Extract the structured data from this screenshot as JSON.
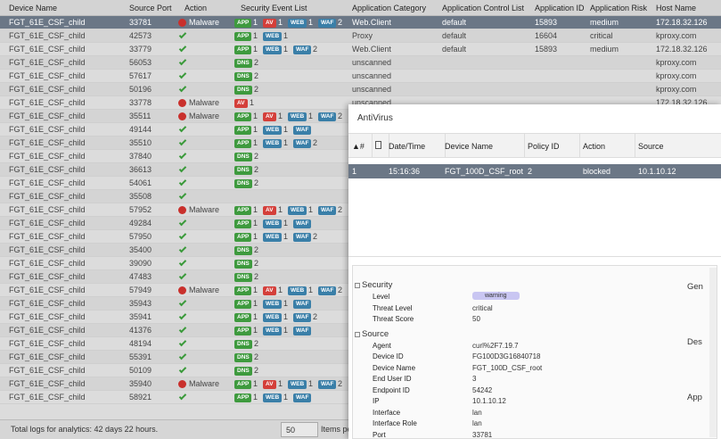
{
  "log_table": {
    "columns": [
      "Device Name",
      "Source Port",
      "Action",
      "Security Event List",
      "Application Category",
      "Application Control List",
      "Application ID",
      "Application Risk",
      "Host Name"
    ],
    "rows": [
      {
        "device": "FGT_61E_CSF_child",
        "port": 33781,
        "action": "Malware",
        "events": [
          [
            "APP",
            1
          ],
          [
            "AV",
            1
          ],
          [
            "WEB",
            1
          ],
          [
            "WAF",
            2
          ]
        ],
        "category": "Web.Client",
        "control": "default",
        "app_id": 15893,
        "risk": "medium",
        "host": "172.18.32.126"
      },
      {
        "device": "FGT_61E_CSF_child",
        "port": 42573,
        "events": [
          [
            "APP",
            1
          ],
          [
            "WEB",
            1
          ]
        ],
        "category": "Proxy",
        "control": "default",
        "app_id": 16604,
        "risk": "critical",
        "host": "kproxy.com"
      },
      {
        "device": "FGT_61E_CSF_child",
        "port": 33779,
        "events": [
          [
            "APP",
            1
          ],
          [
            "WEB",
            1
          ],
          [
            "WAF",
            2
          ]
        ],
        "category": "Web.Client",
        "control": "default",
        "app_id": 15893,
        "risk": "medium",
        "host": "172.18.32.126"
      },
      {
        "device": "FGT_61E_CSF_child",
        "port": 56053,
        "events": [
          [
            "DNS",
            2
          ]
        ],
        "category": "unscanned",
        "host": "kproxy.com"
      },
      {
        "device": "FGT_61E_CSF_child",
        "port": 57617,
        "events": [
          [
            "DNS",
            2
          ]
        ],
        "category": "unscanned",
        "host": "kproxy.com"
      },
      {
        "device": "FGT_61E_CSF_child",
        "port": 50196,
        "events": [
          [
            "DNS",
            2
          ]
        ],
        "category": "unscanned",
        "host": "kproxy.com"
      },
      {
        "device": "FGT_61E_CSF_child",
        "port": 33778,
        "action": "Malware",
        "events": [
          [
            "AV",
            1
          ]
        ],
        "category": "unscanned",
        "host": "172.18.32.126"
      },
      {
        "device": "FGT_61E_CSF_child",
        "port": 35511,
        "action": "Malware",
        "events": [
          [
            "APP",
            1
          ],
          [
            "AV",
            1
          ],
          [
            "WEB",
            1
          ],
          [
            "WAF",
            2
          ]
        ]
      },
      {
        "device": "FGT_61E_CSF_child",
        "port": 49144,
        "events": [
          [
            "APP",
            1
          ],
          [
            "WEB",
            1
          ],
          [
            "WAF"
          ]
        ]
      },
      {
        "device": "FGT_61E_CSF_child",
        "port": 35510,
        "events": [
          [
            "APP",
            1
          ],
          [
            "WEB",
            1
          ],
          [
            "WAF",
            2
          ]
        ]
      },
      {
        "device": "FGT_61E_CSF_child",
        "port": 37840,
        "events": [
          [
            "DNS",
            2
          ]
        ]
      },
      {
        "device": "FGT_61E_CSF_child",
        "port": 36613,
        "events": [
          [
            "DNS",
            2
          ]
        ]
      },
      {
        "device": "FGT_61E_CSF_child",
        "port": 54061,
        "events": [
          [
            "DNS",
            2
          ]
        ]
      },
      {
        "device": "FGT_61E_CSF_child",
        "port": 35508,
        "events": []
      },
      {
        "device": "FGT_61E_CSF_child",
        "port": 57952,
        "action": "Malware",
        "events": [
          [
            "APP",
            1
          ],
          [
            "AV",
            1
          ],
          [
            "WEB",
            1
          ],
          [
            "WAF",
            2
          ]
        ]
      },
      {
        "device": "FGT_61E_CSF_child",
        "port": 49284,
        "events": [
          [
            "APP",
            1
          ],
          [
            "WEB",
            1
          ],
          [
            "WAF"
          ]
        ]
      },
      {
        "device": "FGT_61E_CSF_child",
        "port": 57950,
        "events": [
          [
            "APP",
            1
          ],
          [
            "WEB",
            1
          ],
          [
            "WAF",
            2
          ]
        ]
      },
      {
        "device": "FGT_61E_CSF_child",
        "port": 35400,
        "events": [
          [
            "DNS",
            2
          ]
        ]
      },
      {
        "device": "FGT_61E_CSF_child",
        "port": 39090,
        "events": [
          [
            "DNS",
            2
          ]
        ]
      },
      {
        "device": "FGT_61E_CSF_child",
        "port": 47483,
        "events": [
          [
            "DNS",
            2
          ]
        ]
      },
      {
        "device": "FGT_61E_CSF_child",
        "port": 57949,
        "action": "Malware",
        "events": [
          [
            "APP",
            1
          ],
          [
            "AV",
            1
          ],
          [
            "WEB",
            1
          ],
          [
            "WAF",
            2
          ]
        ]
      },
      {
        "device": "FGT_61E_CSF_child",
        "port": 35943,
        "events": [
          [
            "APP",
            1
          ],
          [
            "WEB",
            1
          ],
          [
            "WAF"
          ]
        ]
      },
      {
        "device": "FGT_61E_CSF_child",
        "port": 35941,
        "events": [
          [
            "APP",
            1
          ],
          [
            "WEB",
            1
          ],
          [
            "WAF",
            2
          ]
        ]
      },
      {
        "device": "FGT_61E_CSF_child",
        "port": 41376,
        "events": [
          [
            "APP",
            1
          ],
          [
            "WEB",
            1
          ],
          [
            "WAF"
          ]
        ]
      },
      {
        "device": "FGT_61E_CSF_child",
        "port": 48194,
        "events": [
          [
            "DNS",
            2
          ]
        ]
      },
      {
        "device": "FGT_61E_CSF_child",
        "port": 55391,
        "events": [
          [
            "DNS",
            2
          ]
        ]
      },
      {
        "device": "FGT_61E_CSF_child",
        "port": 50109,
        "events": [
          [
            "DNS",
            2
          ]
        ]
      },
      {
        "device": "FGT_61E_CSF_child",
        "port": 35940,
        "action": "Malware",
        "events": [
          [
            "APP",
            1
          ],
          [
            "AV",
            1
          ],
          [
            "WEB",
            1
          ],
          [
            "WAF",
            2
          ]
        ]
      },
      {
        "device": "FGT_61E_CSF_child",
        "port": 58921,
        "events": [
          [
            "APP",
            1
          ],
          [
            "WEB",
            1
          ],
          [
            "WAF"
          ]
        ]
      }
    ]
  },
  "footer": {
    "summary": "Total logs for analytics: 42 days 22 hours.",
    "page_size": 50,
    "items_label": "Items pe"
  },
  "modal": {
    "title": "AntiVirus",
    "columns": [
      "▲#",
      "Date/Time",
      "Device Name",
      "Policy ID",
      "Action",
      "Source"
    ],
    "rows": [
      [
        1,
        "15:16:36",
        "FGT_100D_CSF_root",
        2,
        "blocked",
        "10.1.10.12"
      ]
    ],
    "details": [
      {
        "section": "Security",
        "fields": [
          [
            "Level",
            "warning"
          ],
          [
            "Threat Level",
            "critical"
          ],
          [
            "Threat Score",
            50
          ]
        ]
      },
      {
        "section": "Source",
        "fields": [
          [
            "Agent",
            "curl%2F7.19.7"
          ],
          [
            "Device ID",
            "FG100D3G16840718"
          ],
          [
            "Device Name",
            "FGT_100D_CSF_root"
          ],
          [
            "End User ID",
            3
          ],
          [
            "Endpoint ID",
            54242
          ],
          [
            "IP",
            "10.1.10.12"
          ],
          [
            "Interface",
            "lan"
          ],
          [
            "Interface Role",
            "lan"
          ],
          [
            "Port",
            33781
          ]
        ]
      }
    ],
    "side_sections": [
      "Gen",
      "Des",
      "App"
    ]
  }
}
